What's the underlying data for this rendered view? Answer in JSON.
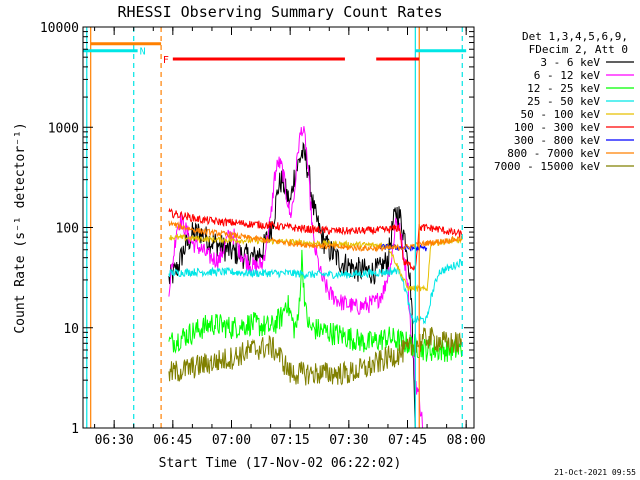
{
  "chart_data": {
    "type": "line",
    "title": "RHESSI Observing Summary Count Rates",
    "xlabel": "Start Time (17-Nov-02 06:22:02)",
    "ylabel": "Count Rate (s⁻¹ detector⁻¹)",
    "y_scale": "log",
    "ylim": [
      1,
      10000
    ],
    "xlim": [
      "06:22:02",
      "08:02:00"
    ],
    "x_ticks": [
      "06:30",
      "06:45",
      "07:00",
      "07:15",
      "07:30",
      "07:45",
      "08:00"
    ],
    "y_ticks": [
      "1",
      "10",
      "100",
      "1000",
      "10000"
    ],
    "grid": false,
    "legend_position": "right",
    "legend_header": [
      "Det 1,3,4,5,6,9,",
      "FDecim 2, Att 0"
    ],
    "footer_timestamp": "21-Oct-2021 09:55",
    "flags": [
      {
        "label": "N",
        "color": "#00e6e6",
        "segments": [
          [
            "06:22",
            "06:36"
          ],
          [
            "07:47",
            "08:00"
          ]
        ],
        "level": 5800
      },
      {
        "label": "F",
        "color": "#ff0000",
        "segments": [
          [
            "06:45",
            "07:29"
          ],
          [
            "07:37",
            "07:48"
          ]
        ],
        "level": 4800
      },
      {
        "label": "",
        "color": "#ff8000",
        "segments": [
          [
            "06:24",
            "06:42"
          ]
        ],
        "level": 6800
      }
    ],
    "vlines": [
      {
        "time": "06:23",
        "color": "#00e6e6",
        "style": "solid"
      },
      {
        "time": "06:24",
        "color": "#ff8000",
        "style": "solid"
      },
      {
        "time": "06:35",
        "color": "#00e6e6",
        "style": "dashed"
      },
      {
        "time": "06:42",
        "color": "#ff8000",
        "style": "dashed"
      },
      {
        "time": "07:47",
        "color": "#00e6e6",
        "style": "solid"
      },
      {
        "time": "07:48",
        "color": "#ff8000",
        "style": "solid"
      },
      {
        "time": "07:59",
        "color": "#00e6e6",
        "style": "dashed"
      }
    ],
    "series": [
      {
        "name": "3 - 6 keV",
        "color": "#000000",
        "noise": 0.13,
        "points": [
          [
            "06:44",
            30
          ],
          [
            "06:46",
            38
          ],
          [
            "06:48",
            62
          ],
          [
            "06:50",
            85
          ],
          [
            "06:52",
            90
          ],
          [
            "06:54",
            75
          ],
          [
            "06:56",
            70
          ],
          [
            "06:58",
            62
          ],
          [
            "07:00",
            58
          ],
          [
            "07:03",
            52
          ],
          [
            "07:06",
            50
          ],
          [
            "07:08",
            60
          ],
          [
            "07:10",
            95
          ],
          [
            "07:11",
            140
          ],
          [
            "07:12",
            260
          ],
          [
            "07:13",
            300
          ],
          [
            "07:14",
            220
          ],
          [
            "07:15",
            170
          ],
          [
            "07:16",
            320
          ],
          [
            "07:17",
            420
          ],
          [
            "07:18",
            560
          ],
          [
            "07:19",
            480
          ],
          [
            "07:20",
            300
          ],
          [
            "07:21",
            150
          ],
          [
            "07:23",
            80
          ],
          [
            "07:25",
            60
          ],
          [
            "07:28",
            45
          ],
          [
            "07:32",
            38
          ],
          [
            "07:36",
            36
          ],
          [
            "07:38",
            38
          ],
          [
            "07:40",
            48
          ],
          [
            "07:41",
            90
          ],
          [
            "07:42",
            145
          ],
          [
            "07:43",
            130
          ],
          [
            "07:44",
            90
          ],
          [
            "07:45",
            60
          ],
          [
            "07:46",
            20
          ],
          [
            "07:47",
            1
          ]
        ]
      },
      {
        "name": "6 - 12 keV",
        "color": "#ff00ff",
        "noise": 0.09,
        "points": [
          [
            "06:44",
            25
          ],
          [
            "06:45",
            45
          ],
          [
            "06:46",
            100
          ],
          [
            "06:47",
            120
          ],
          [
            "06:48",
            100
          ],
          [
            "06:50",
            70
          ],
          [
            "06:52",
            62
          ],
          [
            "06:54",
            52
          ],
          [
            "06:56",
            48
          ],
          [
            "06:57",
            48
          ],
          [
            "06:58",
            62
          ],
          [
            "06:59",
            78
          ],
          [
            "07:00",
            86
          ],
          [
            "07:01",
            78
          ],
          [
            "07:02",
            58
          ],
          [
            "07:04",
            46
          ],
          [
            "07:06",
            40
          ],
          [
            "07:08",
            44
          ],
          [
            "07:10",
            120
          ],
          [
            "07:11",
            320
          ],
          [
            "07:12",
            450
          ],
          [
            "07:13",
            380
          ],
          [
            "07:14",
            220
          ],
          [
            "07:15",
            130
          ],
          [
            "07:16",
            200
          ],
          [
            "07:17",
            600
          ],
          [
            "07:18",
            1000
          ],
          [
            "07:19",
            700
          ],
          [
            "07:20",
            220
          ],
          [
            "07:21",
            70
          ],
          [
            "07:23",
            32
          ],
          [
            "07:25",
            22
          ],
          [
            "07:28",
            18
          ],
          [
            "07:32",
            16
          ],
          [
            "07:35",
            17
          ],
          [
            "07:37",
            18
          ],
          [
            "07:39",
            24
          ],
          [
            "07:41",
            50
          ],
          [
            "07:42",
            120
          ],
          [
            "07:43",
            95
          ],
          [
            "07:44",
            55
          ],
          [
            "07:45",
            30
          ],
          [
            "07:46",
            8
          ],
          [
            "07:47",
            3
          ],
          [
            "07:48",
            2
          ],
          [
            "07:49",
            1
          ]
        ]
      },
      {
        "name": "12 - 25 keV",
        "color": "#00ff00",
        "noise": 0.12,
        "points": [
          [
            "06:44",
            7
          ],
          [
            "06:50",
            9
          ],
          [
            "06:55",
            11
          ],
          [
            "07:00",
            10
          ],
          [
            "07:05",
            11
          ],
          [
            "07:10",
            10
          ],
          [
            "07:13",
            13
          ],
          [
            "07:14",
            19
          ],
          [
            "07:15",
            14
          ],
          [
            "07:16",
            10
          ],
          [
            "07:17",
            11
          ],
          [
            "07:18",
            50
          ],
          [
            "07:19",
            14
          ],
          [
            "07:20",
            10
          ],
          [
            "07:25",
            9
          ],
          [
            "07:30",
            8
          ],
          [
            "07:35",
            7
          ],
          [
            "07:40",
            8
          ],
          [
            "07:45",
            7
          ],
          [
            "07:50",
            6
          ],
          [
            "07:55",
            6
          ],
          [
            "07:59",
            6
          ]
        ]
      },
      {
        "name": "25 - 50 keV",
        "color": "#00e6e6",
        "noise": 0.04,
        "points": [
          [
            "06:44",
            35
          ],
          [
            "06:50",
            36
          ],
          [
            "06:55",
            36
          ],
          [
            "07:00",
            36
          ],
          [
            "07:05",
            35
          ],
          [
            "07:10",
            35
          ],
          [
            "07:15",
            35
          ],
          [
            "07:20",
            34
          ],
          [
            "07:25",
            34
          ],
          [
            "07:30",
            34
          ],
          [
            "07:35",
            35
          ],
          [
            "07:40",
            36
          ],
          [
            "07:43",
            38
          ],
          [
            "07:45",
            20
          ],
          [
            "07:46",
            12
          ],
          [
            "07:50",
            12
          ],
          [
            "07:51",
            20
          ],
          [
            "07:53",
            36
          ],
          [
            "07:56",
            40
          ],
          [
            "07:59",
            46
          ]
        ]
      },
      {
        "name": "50 - 100 keV",
        "color": "#e6c000",
        "noise": 0.03,
        "points": [
          [
            "06:44",
            80
          ],
          [
            "06:50",
            78
          ],
          [
            "06:55",
            76
          ],
          [
            "07:00",
            75
          ],
          [
            "07:05",
            74
          ],
          [
            "07:10",
            73
          ],
          [
            "07:15",
            72
          ],
          [
            "07:20",
            70
          ],
          [
            "07:25",
            69
          ],
          [
            "07:30",
            68
          ],
          [
            "07:35",
            67
          ],
          [
            "07:40",
            66
          ],
          [
            "07:45",
            25
          ],
          [
            "07:50",
            24
          ],
          [
            "07:51",
            70
          ],
          [
            "07:55",
            72
          ],
          [
            "07:59",
            75
          ]
        ]
      },
      {
        "name": "100 - 300 keV",
        "color": "#ff0000",
        "noise": 0.04,
        "points": [
          [
            "06:44",
            140
          ],
          [
            "06:48",
            130
          ],
          [
            "06:52",
            120
          ],
          [
            "06:56",
            115
          ],
          [
            "07:00",
            112
          ],
          [
            "07:05",
            108
          ],
          [
            "07:10",
            105
          ],
          [
            "07:15",
            100
          ],
          [
            "07:20",
            96
          ],
          [
            "07:25",
            93
          ],
          [
            "07:30",
            92
          ],
          [
            "07:35",
            93
          ],
          [
            "07:40",
            95
          ],
          [
            "07:43",
            100
          ],
          [
            "07:44",
            45
          ],
          [
            "07:47",
            40
          ],
          [
            "07:48",
            100
          ],
          [
            "07:52",
            98
          ],
          [
            "07:56",
            90
          ],
          [
            "07:59",
            85
          ]
        ]
      },
      {
        "name": "300 - 800 keV",
        "color": "#0000ff",
        "noise": 0.03,
        "points": [
          [
            "07:38",
            64
          ],
          [
            "07:42",
            63
          ],
          [
            "07:46",
            62
          ],
          [
            "07:50",
            62
          ]
        ]
      },
      {
        "name": "800 - 7000 keV",
        "color": "#ff8000",
        "noise": 0.03,
        "points": [
          [
            "06:44",
            110
          ],
          [
            "06:48",
            100
          ],
          [
            "06:52",
            92
          ],
          [
            "06:56",
            88
          ],
          [
            "07:00",
            84
          ],
          [
            "07:05",
            78
          ],
          [
            "07:10",
            74
          ],
          [
            "07:15",
            70
          ],
          [
            "07:20",
            67
          ],
          [
            "07:25",
            65
          ],
          [
            "07:30",
            63
          ],
          [
            "07:35",
            62
          ],
          [
            "07:40",
            62
          ],
          [
            "07:45",
            64
          ],
          [
            "07:50",
            70
          ],
          [
            "07:55",
            74
          ],
          [
            "07:59",
            78
          ]
        ]
      },
      {
        "name": "7000 - 15000 keV",
        "color": "#808000",
        "noise": 0.12,
        "points": [
          [
            "06:44",
            3.5
          ],
          [
            "06:50",
            4
          ],
          [
            "06:55",
            4.5
          ],
          [
            "07:00",
            5
          ],
          [
            "07:05",
            6
          ],
          [
            "07:10",
            6.5
          ],
          [
            "07:12",
            5.5
          ],
          [
            "07:15",
            3.5
          ],
          [
            "07:20",
            3.5
          ],
          [
            "07:25",
            3.5
          ],
          [
            "07:30",
            3.5
          ],
          [
            "07:35",
            4
          ],
          [
            "07:40",
            5
          ],
          [
            "07:45",
            6
          ],
          [
            "07:50",
            8
          ],
          [
            "07:55",
            7
          ],
          [
            "07:59",
            7
          ]
        ]
      }
    ]
  }
}
